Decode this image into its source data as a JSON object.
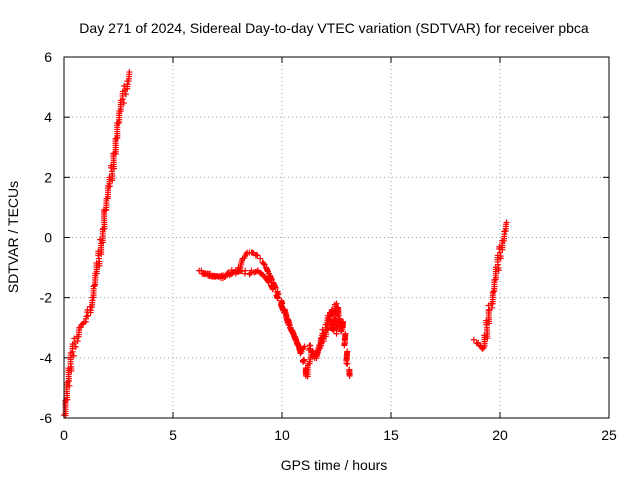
{
  "chart_data": {
    "type": "scatter",
    "title": "Day 271 of 2024, Sidereal Day-to-day VTEC variation (SDTVAR) for receiver pbca",
    "xlabel": "GPS time / hours",
    "ylabel": "SDTVAR / TECUs",
    "xlim": [
      0,
      25
    ],
    "ylim": [
      -6,
      6
    ],
    "xticks": [
      "0",
      "5",
      "10",
      "15",
      "20",
      "25"
    ],
    "yticks": [
      "-6",
      "-4",
      "-2",
      "0",
      "2",
      "4",
      "6"
    ],
    "grid": true,
    "marker": "+",
    "color": "#ff0000",
    "series": [
      {
        "name": "SDTVAR",
        "segments": [
          [
            [
              0.0,
              -5.9
            ],
            [
              0.1,
              -5.4
            ],
            [
              0.2,
              -4.8
            ],
            [
              0.3,
              -4.2
            ],
            [
              0.4,
              -3.8
            ],
            [
              0.5,
              -3.5
            ],
            [
              0.6,
              -3.3
            ],
            [
              0.7,
              -3.0
            ],
            [
              0.8,
              -2.9
            ],
            [
              1.0,
              -2.8
            ],
            [
              1.1,
              -2.6
            ],
            [
              1.2,
              -2.3
            ],
            [
              1.3,
              -2.0
            ],
            [
              1.4,
              -1.6
            ],
            [
              1.5,
              -1.2
            ],
            [
              1.6,
              -0.7
            ],
            [
              1.7,
              -0.2
            ],
            [
              1.8,
              0.3
            ],
            [
              1.9,
              0.9
            ],
            [
              2.0,
              1.3
            ],
            [
              2.1,
              1.7
            ],
            [
              2.2,
              2.2
            ],
            [
              2.3,
              2.8
            ],
            [
              2.4,
              3.3
            ],
            [
              2.5,
              3.8
            ],
            [
              2.6,
              4.2
            ],
            [
              2.7,
              4.6
            ],
            [
              2.8,
              4.9
            ],
            [
              2.9,
              5.2
            ],
            [
              3.0,
              5.5
            ]
          ],
          [
            [
              6.2,
              -1.1
            ],
            [
              6.5,
              -1.2
            ],
            [
              6.8,
              -1.3
            ],
            [
              7.1,
              -1.3
            ],
            [
              7.4,
              -1.3
            ],
            [
              7.7,
              -1.2
            ],
            [
              8.0,
              -1.0
            ],
            [
              8.2,
              -0.7
            ],
            [
              8.4,
              -0.5
            ],
            [
              8.6,
              -0.5
            ],
            [
              8.8,
              -0.6
            ],
            [
              9.0,
              -0.7
            ],
            [
              9.2,
              -0.9
            ],
            [
              9.4,
              -1.2
            ],
            [
              9.6,
              -1.5
            ],
            [
              9.8,
              -1.8
            ],
            [
              10.0,
              -2.2
            ],
            [
              10.2,
              -2.6
            ],
            [
              10.4,
              -3.0
            ],
            [
              10.6,
              -3.3
            ],
            [
              10.8,
              -3.7
            ],
            [
              11.0,
              -4.1
            ],
            [
              11.1,
              -4.6
            ],
            [
              11.2,
              -4.2
            ],
            [
              11.4,
              -3.8
            ],
            [
              11.6,
              -3.9
            ],
            [
              11.8,
              -3.6
            ],
            [
              11.9,
              -3.2
            ],
            [
              12.0,
              -2.9
            ],
            [
              12.1,
              -2.6
            ],
            [
              12.2,
              -2.9
            ],
            [
              12.3,
              -2.4
            ],
            [
              12.4,
              -3.0
            ],
            [
              12.5,
              -2.2
            ],
            [
              12.6,
              -2.6
            ],
            [
              12.7,
              -3.1
            ],
            [
              12.8,
              -2.8
            ],
            [
              12.9,
              -3.5
            ],
            [
              13.0,
              -4.2
            ],
            [
              13.1,
              -4.6
            ]
          ],
          [
            [
              6.3,
              -1.1
            ],
            [
              6.7,
              -1.2
            ],
            [
              7.2,
              -1.35
            ],
            [
              7.6,
              -1.25
            ],
            [
              8.0,
              -1.15
            ],
            [
              8.3,
              -1.2
            ],
            [
              8.6,
              -1.1
            ],
            [
              8.9,
              -1.1
            ],
            [
              9.2,
              -1.3
            ],
            [
              9.5,
              -1.6
            ],
            [
              9.8,
              -2.0
            ],
            [
              10.1,
              -2.5
            ],
            [
              10.3,
              -2.9
            ],
            [
              10.5,
              -3.2
            ],
            [
              10.7,
              -3.5
            ],
            [
              10.9,
              -3.8
            ],
            [
              11.3,
              -3.6
            ],
            [
              11.5,
              -4.0
            ],
            [
              11.7,
              -3.7
            ],
            [
              12.0,
              -3.1
            ],
            [
              12.2,
              -3.0
            ],
            [
              12.5,
              -3.2
            ],
            [
              12.8,
              -2.9
            ]
          ],
          [
            [
              18.8,
              -3.4
            ],
            [
              19.0,
              -3.5
            ],
            [
              19.2,
              -3.7
            ],
            [
              19.3,
              -3.6
            ],
            [
              19.4,
              -3.0
            ],
            [
              19.5,
              -2.4
            ],
            [
              19.6,
              -2.2
            ],
            [
              19.7,
              -1.8
            ],
            [
              19.8,
              -1.4
            ],
            [
              19.9,
              -0.9
            ],
            [
              20.0,
              -0.5
            ],
            [
              20.1,
              -0.1
            ],
            [
              20.2,
              0.2
            ],
            [
              20.3,
              0.5
            ]
          ]
        ]
      }
    ]
  }
}
